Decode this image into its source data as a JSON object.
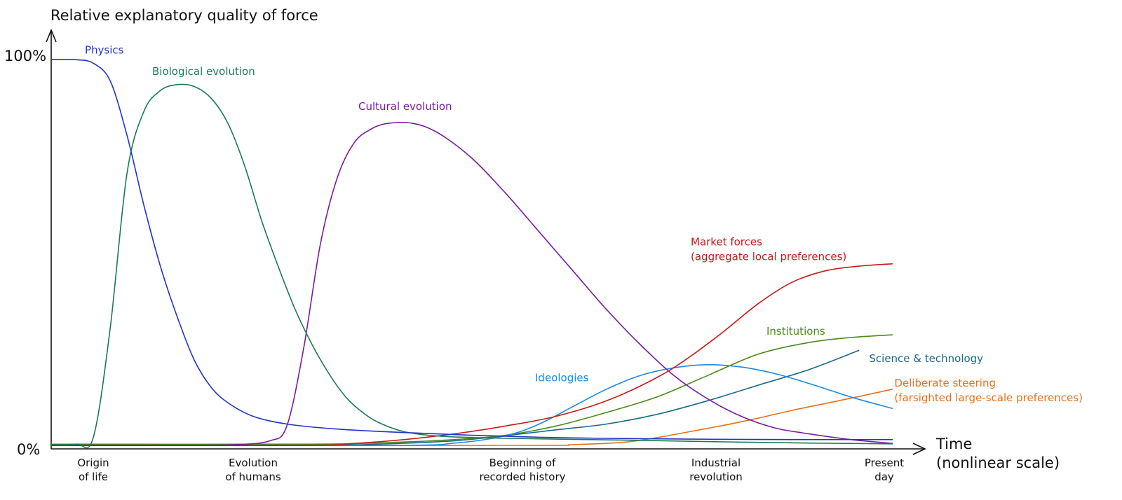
{
  "chart_data": {
    "type": "line",
    "ylabel": "Relative explanatory quality of force",
    "xlabel": [
      "Time",
      "(nonlinear scale)"
    ],
    "yticks": [
      "100%",
      "0%"
    ],
    "ylim": [
      0,
      100
    ],
    "xlim": [
      0,
      100
    ],
    "x_ticks": [
      {
        "x": 5,
        "lines": [
          "Origin",
          "of life"
        ]
      },
      {
        "x": 24,
        "lines": [
          "Evolution",
          "of humans"
        ]
      },
      {
        "x": 56,
        "lines": [
          "Beginning of",
          "recorded history"
        ]
      },
      {
        "x": 79,
        "lines": [
          "Industrial",
          "revolution"
        ]
      },
      {
        "x": 99,
        "lines": [
          "Present",
          "day"
        ]
      }
    ],
    "grid": false,
    "legend": "inline labels",
    "series": [
      {
        "name": "Physics",
        "color": "#2233c8",
        "label_at": [
          4,
          101
        ],
        "points": [
          [
            0,
            99.5
          ],
          [
            3,
            99.4
          ],
          [
            5,
            98.5
          ],
          [
            7,
            94
          ],
          [
            9,
            80
          ],
          [
            11,
            62
          ],
          [
            13,
            46
          ],
          [
            15,
            33
          ],
          [
            17,
            22
          ],
          [
            19,
            15
          ],
          [
            21,
            11
          ],
          [
            24,
            7.5
          ],
          [
            28,
            5.5
          ],
          [
            34,
            4.2
          ],
          [
            42,
            3.3
          ],
          [
            50,
            2.6
          ],
          [
            58,
            2.1
          ],
          [
            66,
            1.8
          ],
          [
            76,
            1.6
          ],
          [
            88,
            1.5
          ],
          [
            100,
            1.5
          ]
        ]
      },
      {
        "name": "Biological evolution",
        "color": "#1a7a55",
        "label_at": [
          12,
          95.5
        ],
        "points": [
          [
            0,
            0.2
          ],
          [
            3,
            0.3
          ],
          [
            5,
            2
          ],
          [
            7,
            30
          ],
          [
            9,
            70
          ],
          [
            11,
            86
          ],
          [
            13,
            91.5
          ],
          [
            15,
            93
          ],
          [
            17,
            92.5
          ],
          [
            19,
            89.5
          ],
          [
            21,
            83
          ],
          [
            23,
            72
          ],
          [
            25,
            58
          ],
          [
            27,
            46
          ],
          [
            29,
            35
          ],
          [
            31,
            26
          ],
          [
            33,
            18.5
          ],
          [
            35,
            12.5
          ],
          [
            37,
            8.5
          ],
          [
            39,
            5.8
          ],
          [
            42,
            3.5
          ],
          [
            46,
            2.4
          ],
          [
            52,
            1.9
          ],
          [
            60,
            1.6
          ],
          [
            70,
            1.3
          ],
          [
            80,
            0.9
          ],
          [
            90,
            0.6
          ],
          [
            100,
            0.4
          ]
        ]
      },
      {
        "name": "Cultural evolution",
        "color": "#7a1aa0",
        "label_at": [
          36.5,
          86.5
        ],
        "points": [
          [
            0,
            0
          ],
          [
            16,
            0
          ],
          [
            22,
            0.2
          ],
          [
            26,
            1.2
          ],
          [
            28,
            5
          ],
          [
            30,
            25
          ],
          [
            32,
            52
          ],
          [
            34,
            69
          ],
          [
            36,
            78
          ],
          [
            38,
            81.5
          ],
          [
            40,
            83
          ],
          [
            43,
            83
          ],
          [
            46,
            80.5
          ],
          [
            50,
            74
          ],
          [
            54,
            65
          ],
          [
            58,
            55
          ],
          [
            62,
            45
          ],
          [
            66,
            35
          ],
          [
            70,
            26
          ],
          [
            74,
            18
          ],
          [
            78,
            12
          ],
          [
            82,
            7.5
          ],
          [
            86,
            4.5
          ],
          [
            90,
            3
          ],
          [
            95,
            1.5
          ],
          [
            100,
            0.5
          ]
        ]
      },
      {
        "name": "Market forces",
        "lines": [
          "Market forces",
          "(aggregate local preferences)"
        ],
        "color": "#c81a1a",
        "label_at": [
          76,
          51.5
        ],
        "points": [
          [
            0,
            0
          ],
          [
            30,
            0
          ],
          [
            36,
            0.5
          ],
          [
            42,
            1.5
          ],
          [
            48,
            3
          ],
          [
            54,
            5
          ],
          [
            60,
            7.5
          ],
          [
            66,
            11.5
          ],
          [
            72,
            17.5
          ],
          [
            76,
            23
          ],
          [
            80,
            29.5
          ],
          [
            84,
            36.5
          ],
          [
            88,
            42
          ],
          [
            92,
            45
          ],
          [
            96,
            46.2
          ],
          [
            100,
            46.8
          ]
        ]
      },
      {
        "name": "Institutions",
        "color": "#4a8a1a",
        "label_at": [
          85,
          28.5
        ],
        "points": [
          [
            0,
            0.3
          ],
          [
            30,
            0.3
          ],
          [
            40,
            0.7
          ],
          [
            48,
            1.5
          ],
          [
            54,
            2.6
          ],
          [
            60,
            5
          ],
          [
            66,
            8.5
          ],
          [
            72,
            12.5
          ],
          [
            78,
            18
          ],
          [
            84,
            23.5
          ],
          [
            90,
            26.5
          ],
          [
            95,
            27.8
          ],
          [
            100,
            28.5
          ]
        ]
      },
      {
        "name": "Science & technology",
        "color": "#1a6a8a",
        "label_at": [
          97.2,
          21.5
        ],
        "points": [
          [
            0,
            0
          ],
          [
            30,
            0
          ],
          [
            40,
            0.4
          ],
          [
            48,
            1.2
          ],
          [
            54,
            2.5
          ],
          [
            60,
            4
          ],
          [
            66,
            5.5
          ],
          [
            72,
            8
          ],
          [
            78,
            11.5
          ],
          [
            84,
            15.5
          ],
          [
            90,
            19.5
          ],
          [
            96,
            24.5
          ]
        ]
      },
      {
        "name": "Ideologies",
        "color": "#1a8ae6",
        "label_at": [
          57.5,
          16.5
        ],
        "points": [
          [
            0,
            0
          ],
          [
            40,
            0
          ],
          [
            48,
            0.6
          ],
          [
            54,
            2.5
          ],
          [
            58,
            5.5
          ],
          [
            62,
            10
          ],
          [
            66,
            14.5
          ],
          [
            70,
            18
          ],
          [
            74,
            20
          ],
          [
            78,
            20.8
          ],
          [
            82,
            20.2
          ],
          [
            86,
            18.5
          ],
          [
            90,
            16
          ],
          [
            95,
            12.5
          ],
          [
            100,
            9.5
          ]
        ]
      },
      {
        "name": "Deliberate steering",
        "lines": [
          "Deliberate steering",
          "(farsighted large-scale preferences)"
        ],
        "color": "#e6701a",
        "label_at": [
          100.2,
          15.2
        ],
        "points": [
          [
            0,
            0
          ],
          [
            55,
            0
          ],
          [
            62,
            0.2
          ],
          [
            68,
            0.8
          ],
          [
            72,
            2
          ],
          [
            76,
            3.6
          ],
          [
            80,
            5.2
          ],
          [
            84,
            7
          ],
          [
            88,
            9
          ],
          [
            92,
            10.8
          ],
          [
            96,
            12.6
          ],
          [
            100,
            14.5
          ]
        ]
      }
    ]
  }
}
